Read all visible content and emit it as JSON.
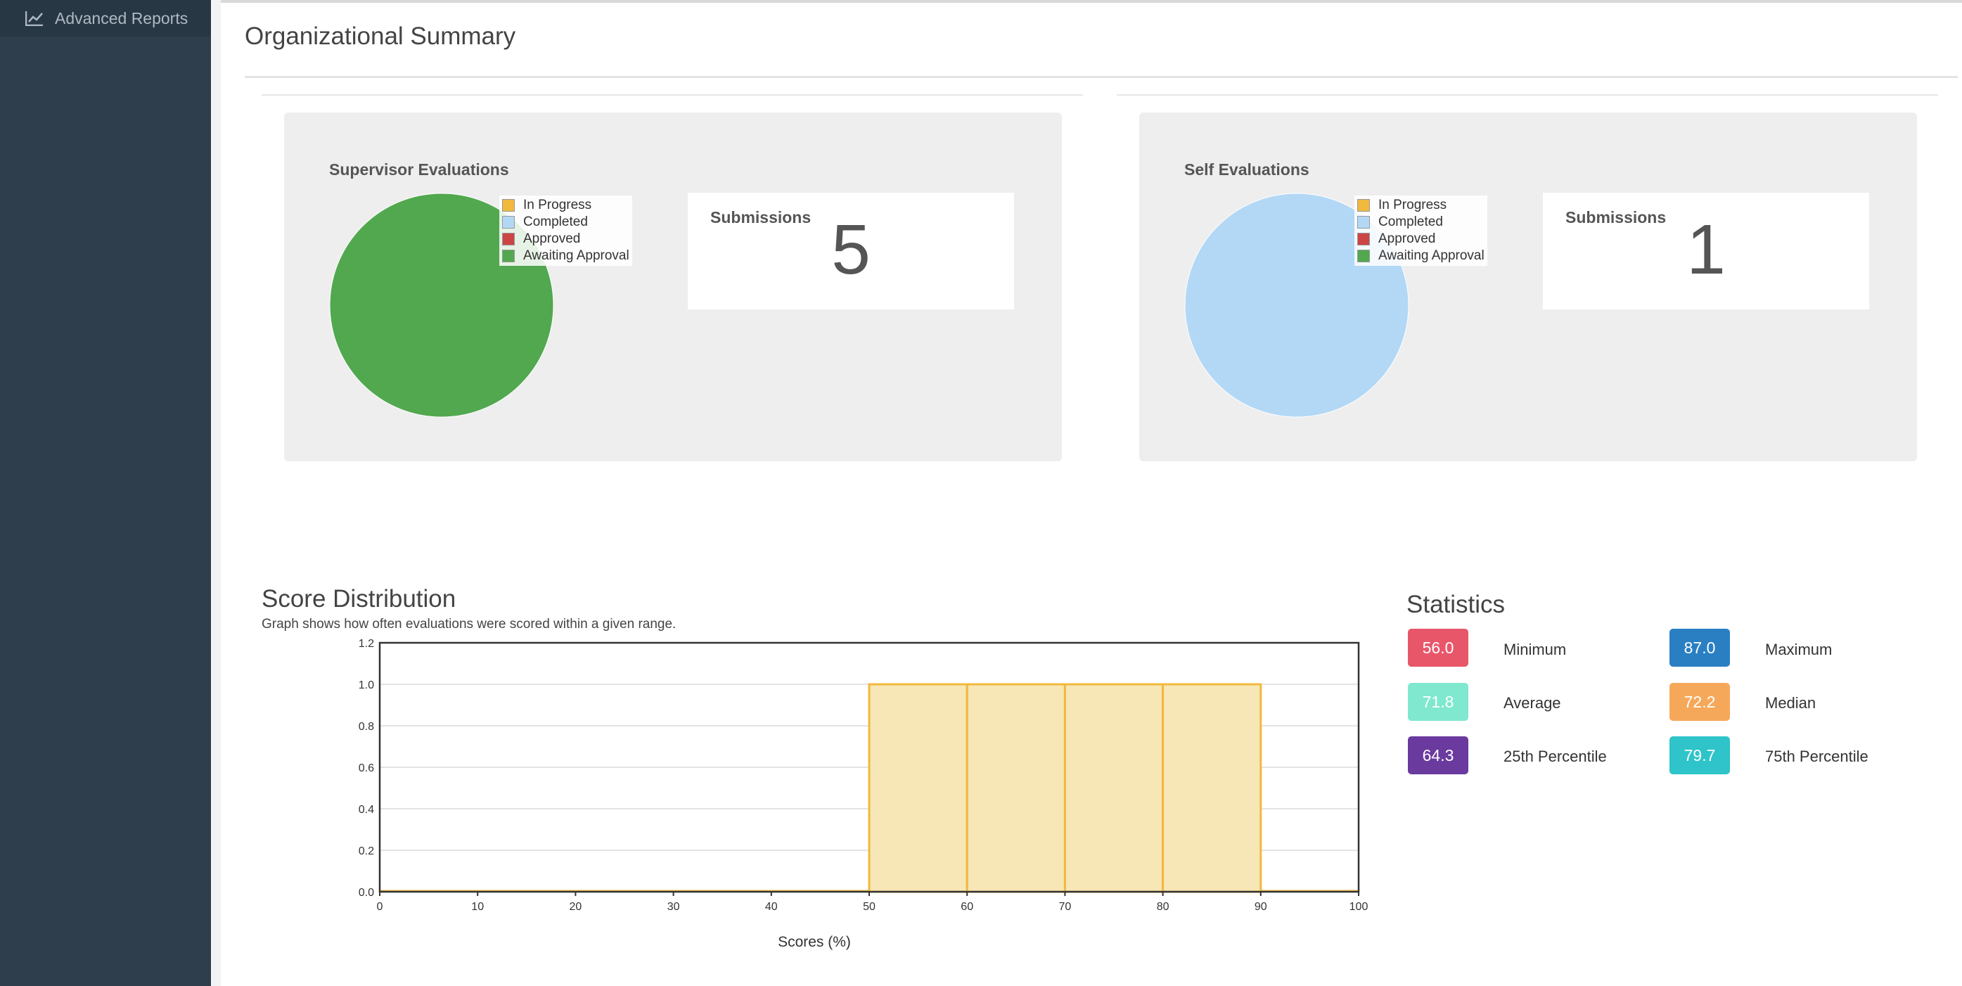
{
  "sidebar": {
    "item_label": "Advanced Reports"
  },
  "page": {
    "title": "Organizational Summary"
  },
  "panels": [
    {
      "title": "Supervisor Evaluations",
      "submissions_label": "Submissions",
      "submissions_value": "5",
      "pie_color": "#52a84f"
    },
    {
      "title": "Self Evaluations",
      "submissions_label": "Submissions",
      "submissions_value": "1",
      "pie_color": "#b3d8f6"
    }
  ],
  "legend": [
    {
      "label": "In Progress",
      "color": "#f0b93e"
    },
    {
      "label": "Completed",
      "color": "#b3d8f6"
    },
    {
      "label": "Approved",
      "color": "#cc4444"
    },
    {
      "label": "Awaiting Approval",
      "color": "#52a84f"
    }
  ],
  "distribution": {
    "title": "Score Distribution",
    "description": "Graph shows how often evaluations were scored within a given range."
  },
  "statistics": {
    "title": "Statistics",
    "items": [
      {
        "value": "56.0",
        "label": "Minimum",
        "color": "#e8566a"
      },
      {
        "value": "87.0",
        "label": "Maximum",
        "color": "#2a7fc3"
      },
      {
        "value": "71.8",
        "label": "Average",
        "color": "#7fe8cf"
      },
      {
        "value": "72.2",
        "label": "Median",
        "color": "#f6a85a"
      },
      {
        "value": "64.3",
        "label": "25th Percentile",
        "color": "#6a3a9e"
      },
      {
        "value": "79.7",
        "label": "75th Percentile",
        "color": "#2ec4c9"
      }
    ]
  },
  "chart_data": {
    "type": "bar",
    "xlabel": "Scores (%)",
    "ylabel": "",
    "x_ticks": [
      "0",
      "10",
      "20",
      "30",
      "40",
      "50",
      "60",
      "70",
      "80",
      "90",
      "100"
    ],
    "y_ticks": [
      "0.0",
      "0.2",
      "0.4",
      "0.6",
      "0.8",
      "1.0",
      "1.2"
    ],
    "ylim": [
      0,
      1.2
    ],
    "xlim": [
      0,
      100
    ],
    "bins": [
      {
        "from": 0,
        "to": 10,
        "value": 0
      },
      {
        "from": 10,
        "to": 20,
        "value": 0
      },
      {
        "from": 20,
        "to": 30,
        "value": 0
      },
      {
        "from": 30,
        "to": 40,
        "value": 0
      },
      {
        "from": 40,
        "to": 50,
        "value": 0
      },
      {
        "from": 50,
        "to": 60,
        "value": 1
      },
      {
        "from": 60,
        "to": 70,
        "value": 1
      },
      {
        "from": 70,
        "to": 80,
        "value": 1
      },
      {
        "from": 80,
        "to": 90,
        "value": 1
      },
      {
        "from": 90,
        "to": 100,
        "value": 0
      }
    ],
    "bar_fill": "#f7e6b6",
    "bar_stroke": "#f0b93e",
    "grid": true
  }
}
